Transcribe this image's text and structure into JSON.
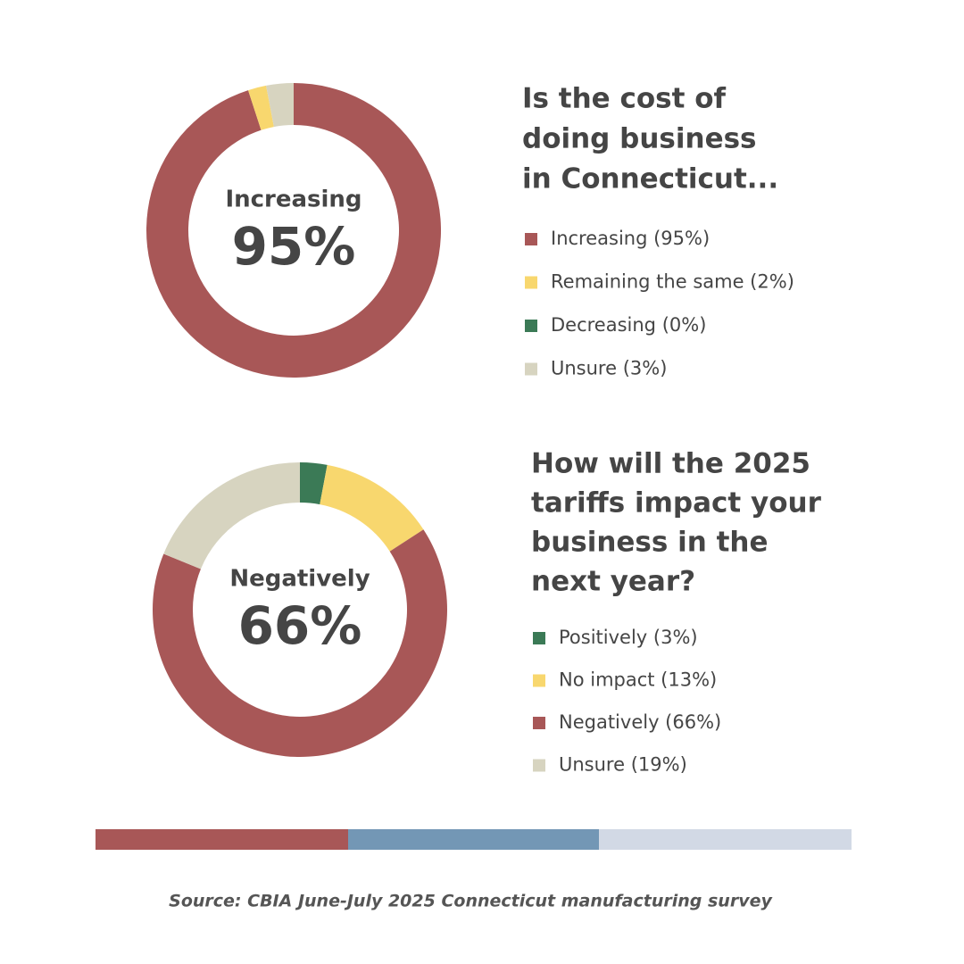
{
  "chart_data": [
    {
      "type": "donut",
      "title": [
        "Is the cost of",
        "doing business",
        "in Connecticut..."
      ],
      "center_label": "Increasing",
      "center_value": "95%",
      "categories": [
        "Increasing (95%)",
        "Remaining the same (2%)",
        "Decreasing (0%)",
        "Unsure (3%)"
      ],
      "values": [
        95,
        2,
        0,
        3
      ],
      "colors": [
        "#a85757",
        "#f8d76e",
        "#3b7a56",
        "#d7d4c0"
      ]
    },
    {
      "type": "donut",
      "title": [
        "How will the 2025",
        "tariffs impact your",
        "business in the",
        "next year?"
      ],
      "center_label": "Negatively",
      "center_value": "66%",
      "categories": [
        "Positively (3%)",
        "No impact (13%)",
        "Negatively (66%)",
        "Unsure (19%)"
      ],
      "values": [
        3,
        13,
        66,
        19
      ],
      "colors": [
        "#3b7a56",
        "#f8d76e",
        "#a85757",
        "#d7d4c0"
      ]
    }
  ],
  "source": "Source: CBIA June-July 2025 Connecticut manufacturing survey"
}
